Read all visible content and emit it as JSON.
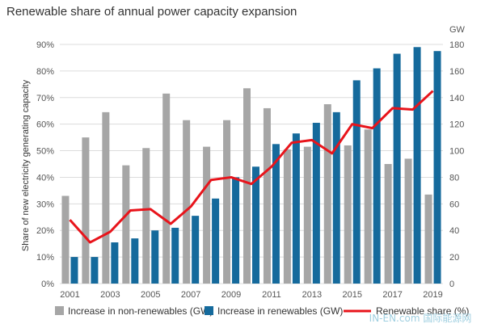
{
  "chart_data": {
    "type": "bar",
    "title": "Renewable share of annual power capacity expansion",
    "y_left_label": "Share of new electricity generating capacity",
    "y_right_unit": "GW",
    "x_tick_labels": [
      "2001",
      "2003",
      "2005",
      "2007",
      "2009",
      "2011",
      "2013",
      "2015",
      "2017",
      "2019"
    ],
    "y_left_ticks": [
      "0%",
      "10%",
      "20%",
      "30%",
      "40%",
      "50%",
      "60%",
      "70%",
      "80%",
      "90%"
    ],
    "y_right_ticks": [
      "0",
      "20",
      "40",
      "60",
      "80",
      "100",
      "120",
      "140",
      "160",
      "180"
    ],
    "y_right_range": [
      0,
      180
    ],
    "years": [
      2001,
      2002,
      2003,
      2004,
      2005,
      2006,
      2007,
      2008,
      2009,
      2010,
      2011,
      2012,
      2013,
      2014,
      2015,
      2016,
      2017,
      2018,
      2019
    ],
    "series": [
      {
        "name": "Increase in non-renewables (GW)",
        "color": "#a6a6a6",
        "axis": "right",
        "values": [
          66,
          110,
          129,
          89,
          102,
          143,
          123,
          103,
          123,
          147,
          132,
          101,
          103,
          135,
          104,
          116,
          90,
          94,
          67
        ]
      },
      {
        "name": "Increase in renewables (GW)",
        "color": "#156a9c",
        "axis": "right",
        "values": [
          20,
          20,
          31,
          34,
          40,
          42,
          51,
          64,
          80,
          88,
          105,
          113,
          121,
          129,
          153,
          162,
          173,
          178,
          175
        ]
      },
      {
        "name": "Renewable share (%)",
        "color": "#e8141b",
        "axis": "left",
        "type": "line",
        "values": [
          24,
          15.5,
          19.5,
          27.5,
          28,
          22.5,
          29,
          39,
          40,
          37.5,
          44,
          53,
          54,
          49,
          60,
          58.5,
          66,
          65.5,
          72.5
        ]
      }
    ],
    "legend": "bottom",
    "grid": true
  },
  "watermark": "IN-EN.com 国际能源网"
}
